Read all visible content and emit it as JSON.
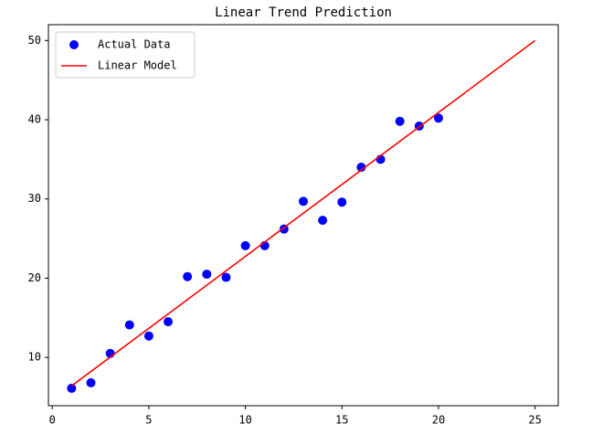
{
  "chart_data": {
    "type": "scatter",
    "title": "Linear Trend Prediction",
    "series": [
      {
        "name": "Actual Data",
        "type": "scatter",
        "color": "#0000ff",
        "x": [
          1,
          2,
          3,
          4,
          5,
          6,
          7,
          8,
          9,
          10,
          11,
          12,
          13,
          14,
          15,
          16,
          17,
          18,
          19,
          20
        ],
        "values": [
          6.1,
          6.8,
          10.5,
          14.1,
          12.7,
          14.5,
          20.2,
          20.5,
          20.1,
          24.1,
          24.1,
          26.2,
          29.7,
          27.3,
          29.6,
          34.0,
          35.0,
          39.8,
          39.2,
          40.2
        ]
      },
      {
        "name": "Linear Model",
        "type": "line",
        "color": "#ff0000",
        "x": [
          1,
          25
        ],
        "values": [
          6.4,
          50.0
        ]
      }
    ],
    "xlim": [
      -0.2,
      26.2
    ],
    "xticks": [
      0,
      5,
      10,
      15,
      20,
      25
    ],
    "ylim": [
      3.9,
      52.0
    ],
    "yticks": [
      10,
      20,
      30,
      40,
      50
    ],
    "legend": "upper left"
  }
}
